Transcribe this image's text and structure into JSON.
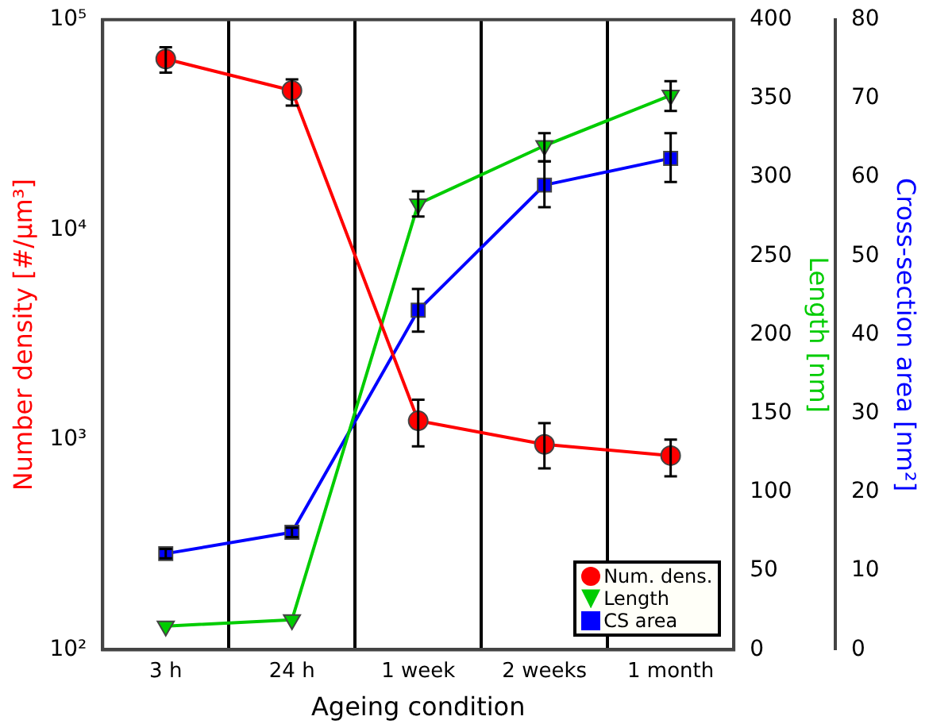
{
  "chart_data": {
    "type": "line",
    "categories": [
      "3 h",
      "24 h",
      "1 week",
      "2 weeks",
      "1 month"
    ],
    "xlabel": "Ageing condition",
    "ylabel": "Number density [#/μm³]",
    "y2label": "Length [nm]",
    "y3label": "Cross-section area [nm²]",
    "log": "y",
    "ylim": [
      100,
      100000
    ],
    "yticks": [
      {
        "value": 100,
        "label": "10²"
      },
      {
        "value": 1000,
        "label": "10³"
      },
      {
        "value": 10000,
        "label": "10⁴"
      },
      {
        "value": 100000,
        "label": "10⁵"
      }
    ],
    "y2lim": [
      0,
      400
    ],
    "y2ticks": [
      0,
      50,
      100,
      150,
      200,
      250,
      300,
      350,
      400
    ],
    "y3lim": [
      0,
      80
    ],
    "y3ticks": [
      0,
      10,
      20,
      30,
      40,
      50,
      60,
      70,
      80
    ],
    "grid": "x",
    "legend": "bottom right",
    "series": [
      {
        "name": "Num. dens.",
        "color": "#ff0000",
        "marker": "circle",
        "values": [
          65000,
          46000,
          1230,
          950,
          840
        ],
        "errors": [
          [
            56000,
            74000
          ],
          [
            39000,
            52000
          ],
          [
            930,
            1550
          ],
          [
            730,
            1200
          ],
          [
            670,
            1000
          ]
        ]
      },
      {
        "name": "Length",
        "color": "#00cc00",
        "marker": "triangle",
        "axis": "y2",
        "values": [
          15,
          19,
          283,
          320,
          352
        ],
        "errors": [
          null,
          null,
          [
            275,
            291
          ],
          [
            310,
            328
          ],
          [
            342,
            361
          ]
        ]
      },
      {
        "name": "CS area",
        "color": "#0000ff",
        "marker": "square",
        "axis": "y3",
        "values": [
          12.2,
          14.9,
          43.1,
          59,
          62.4
        ],
        "errors": [
          [
            11.6,
            12.8
          ],
          [
            14.3,
            15.5
          ],
          [
            40.4,
            45.8
          ],
          [
            56.2,
            62
          ],
          [
            59.4,
            65.6
          ]
        ]
      }
    ]
  }
}
